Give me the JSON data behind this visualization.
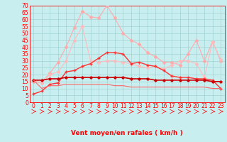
{
  "x": [
    0,
    1,
    2,
    3,
    4,
    5,
    6,
    7,
    8,
    9,
    10,
    11,
    12,
    13,
    14,
    15,
    16,
    17,
    18,
    19,
    20,
    21,
    22,
    23
  ],
  "series": [
    {
      "color": "#ffaaaa",
      "lw": 0.8,
      "marker": "D",
      "ms": 2.0,
      "values": [
        15,
        14,
        21,
        29,
        40,
        54,
        66,
        62,
        61,
        70,
        61,
        50,
        45,
        42,
        36,
        33,
        29,
        29,
        27,
        35,
        45,
        30,
        44,
        30
      ]
    },
    {
      "color": "#ffbbbb",
      "lw": 0.8,
      "marker": "D",
      "ms": 2.0,
      "values": [
        16,
        14,
        20,
        22,
        30,
        45,
        55,
        30,
        29,
        30,
        30,
        29,
        28,
        26,
        25,
        26,
        24,
        27,
        30,
        30,
        28,
        18,
        44,
        31
      ]
    },
    {
      "color": "#ff3333",
      "lw": 1.0,
      "marker": "+",
      "ms": 3.0,
      "values": [
        6,
        8,
        13,
        14,
        22,
        23,
        26,
        28,
        32,
        36,
        36,
        35,
        28,
        29,
        27,
        26,
        23,
        19,
        18,
        18,
        17,
        17,
        16,
        10
      ]
    },
    {
      "color": "#cc0000",
      "lw": 1.2,
      "marker": "D",
      "ms": 1.8,
      "values": [
        16,
        16,
        17,
        17,
        18,
        18,
        18,
        18,
        18,
        18,
        18,
        18,
        17,
        17,
        17,
        16,
        16,
        16,
        16,
        16,
        16,
        16,
        15,
        15
      ]
    },
    {
      "color": "#ff6666",
      "lw": 0.8,
      "marker": null,
      "ms": 0,
      "values": [
        16,
        10,
        12,
        12,
        13,
        13,
        13,
        13,
        13,
        13,
        12,
        12,
        11,
        11,
        11,
        11,
        11,
        11,
        11,
        11,
        11,
        11,
        10,
        10
      ]
    }
  ],
  "xlim": [
    -0.5,
    23.5
  ],
  "ylim": [
    0,
    70
  ],
  "yticks": [
    0,
    5,
    10,
    15,
    20,
    25,
    30,
    35,
    40,
    45,
    50,
    55,
    60,
    65,
    70
  ],
  "xticks": [
    0,
    1,
    2,
    3,
    4,
    5,
    6,
    7,
    8,
    9,
    10,
    11,
    12,
    13,
    14,
    15,
    16,
    17,
    18,
    19,
    20,
    21,
    22,
    23
  ],
  "xlabel": "Vent moyen/en rafales ( km/h )",
  "bg_color": "#c8eef0",
  "grid_color": "#99cccc",
  "axis_color": "#ff0000",
  "text_color": "#ff0000",
  "xlabel_fontsize": 6.5,
  "tick_fontsize": 5.5,
  "arrow_color": "#ff0000"
}
